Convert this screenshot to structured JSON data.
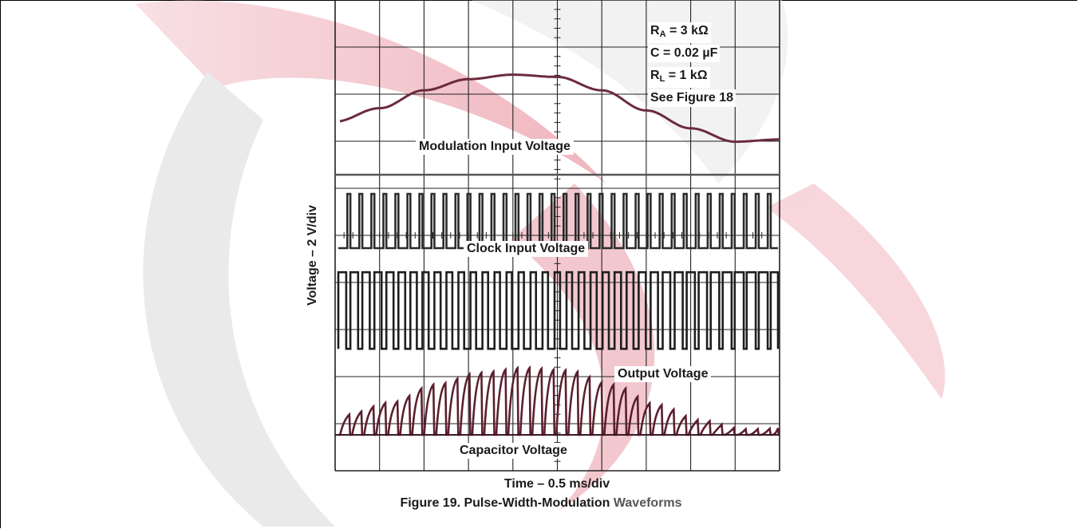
{
  "chart_data": {
    "type": "line",
    "title": "",
    "caption_prefix": "Figure 19. Pulse-Width-Modulation",
    "caption_suffix": "Waveforms",
    "xlabel": "Time – 0.5 ms/div",
    "ylabel": "Voltage – 2 V/div",
    "grid": true,
    "grid_divisions": {
      "x": 10,
      "y": 10
    },
    "parameters": [
      {
        "symbol": "R",
        "sub": "A",
        "text": " = 3 kΩ"
      },
      {
        "symbol": "C",
        "sub": "",
        "text": " = 0.02 µF"
      },
      {
        "symbol": "R",
        "sub": "L",
        "text": " = 1 kΩ"
      },
      {
        "symbol": "",
        "sub": "",
        "text": "See Figure 18"
      }
    ],
    "series": [
      {
        "name": "Modulation Input Voltage",
        "shape": "sine",
        "x_div": [
          0,
          1,
          2,
          3,
          4,
          5,
          6,
          7,
          8,
          9,
          10
        ],
        "y_div": [
          1.7,
          2.3,
          3.1,
          3.6,
          3.8,
          3.7,
          3.1,
          2.2,
          1.4,
          0.8,
          0.9
        ]
      },
      {
        "name": "Clock Input Voltage",
        "shape": "square",
        "pulses_per_div": 3.7,
        "duty": 0.25,
        "low_div": 0.1,
        "high_div": 1.8
      },
      {
        "name": "Output Voltage",
        "shape": "pwm",
        "pulses_per_div": 3.7,
        "duty_min": 0.25,
        "duty_max": 0.55,
        "low_div": 0.1,
        "high_div": 2.1
      },
      {
        "name": "Capacitor Voltage",
        "shape": "sawtooth",
        "teeth_per_div": 3.7,
        "peak_min_div": 0.15,
        "peak_max_div": 1.75
      }
    ]
  }
}
